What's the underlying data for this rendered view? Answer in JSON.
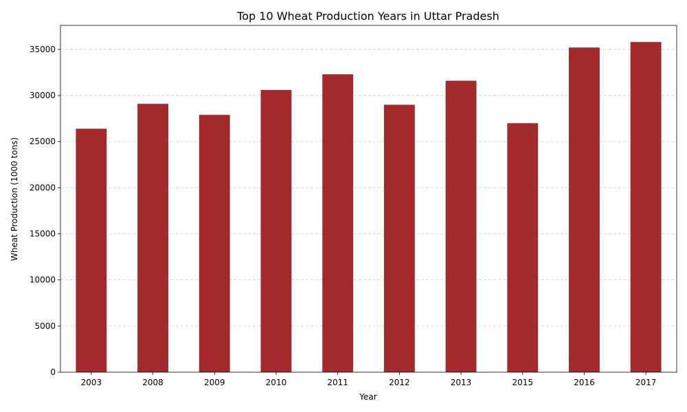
{
  "chart_data": {
    "type": "bar",
    "title": "Top 10 Wheat Production Years in Uttar Pradesh",
    "xlabel": "Year",
    "ylabel": "Wheat Production (1000 tons)",
    "categories": [
      "2003",
      "2008",
      "2009",
      "2010",
      "2011",
      "2012",
      "2013",
      "2015",
      "2016",
      "2017"
    ],
    "values": [
      26400,
      29100,
      27900,
      30600,
      32300,
      29000,
      31600,
      27000,
      35200,
      35800
    ],
    "ylim": [
      0,
      37600
    ],
    "yticks": [
      0,
      5000,
      10000,
      15000,
      20000,
      25000,
      30000,
      35000
    ],
    "grid": "y-dashed",
    "bar_color": "#a3292c"
  }
}
